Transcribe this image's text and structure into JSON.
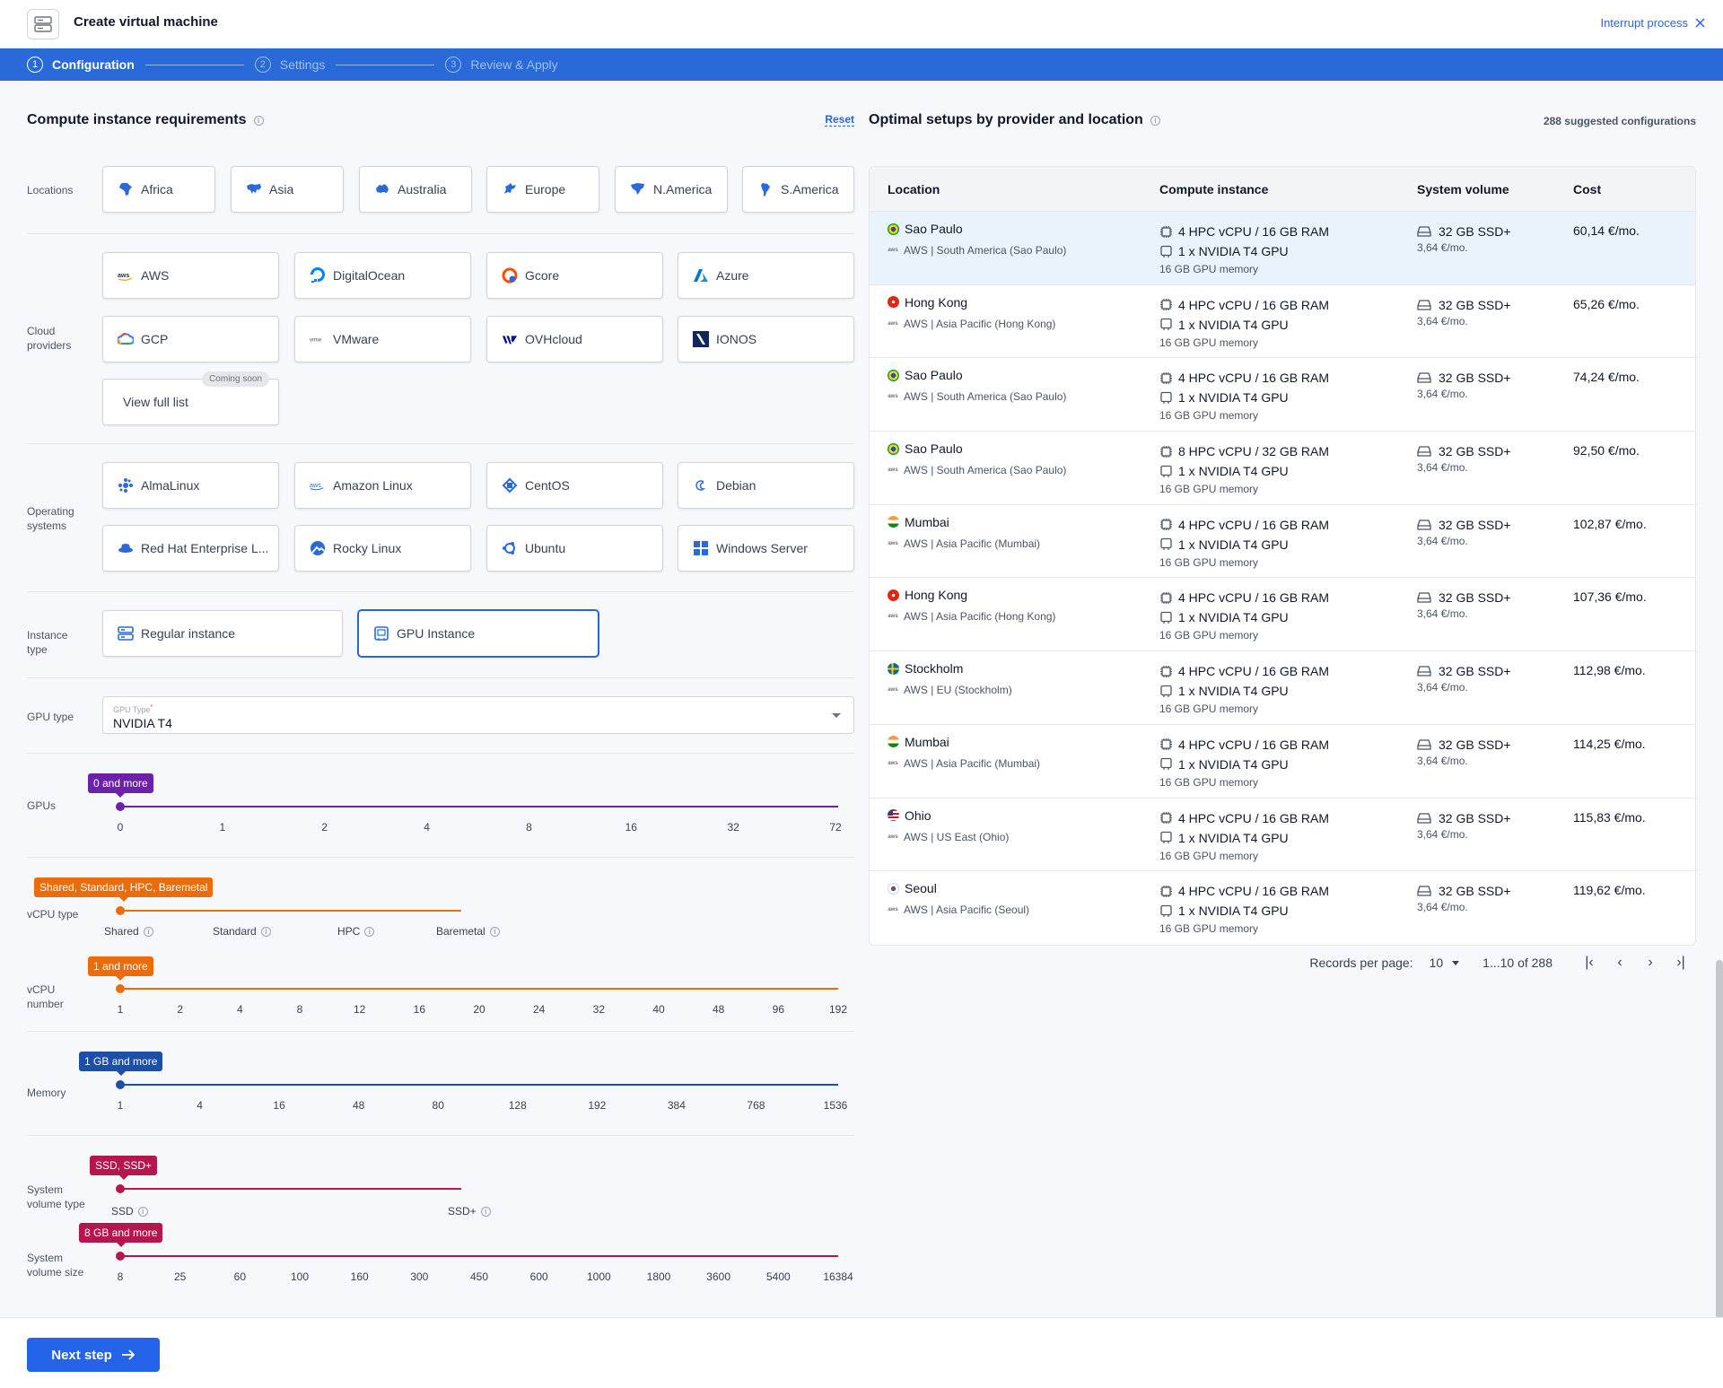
{
  "header": {
    "title": "Create virtual machine",
    "interrupt_label": "Interrupt process"
  },
  "stepper": {
    "steps": [
      {
        "num": "1",
        "label": "Configuration"
      },
      {
        "num": "2",
        "label": "Settings"
      },
      {
        "num": "3",
        "label": "Review & Apply"
      }
    ]
  },
  "left": {
    "title": "Compute instance requirements",
    "reset_label": "Reset",
    "locations": {
      "label": "Locations",
      "items": [
        "Africa",
        "Asia",
        "Australia",
        "Europe",
        "N.America",
        "S.America"
      ]
    },
    "cloud_providers": {
      "label": "Cloud providers",
      "items": [
        "AWS",
        "DigitalOcean",
        "Gcore",
        "Azure",
        "GCP",
        "VMware",
        "OVHcloud",
        "IONOS"
      ],
      "view_full_list": "View full list",
      "coming_soon": "Coming soon"
    },
    "operating_systems": {
      "label": "Operating systems",
      "items": [
        "AlmaLinux",
        "Amazon Linux",
        "CentOS",
        "Debian",
        "Red Hat Enterprise L...",
        "Rocky Linux",
        "Ubuntu",
        "Windows Server"
      ]
    },
    "instance_type": {
      "label": "Instance type",
      "items": [
        "Regular instance",
        "GPU Instance"
      ],
      "selected": "GPU Instance"
    },
    "gpu_type": {
      "label": "GPU type",
      "field_label": "GPU Type",
      "required_mark": "*",
      "value": "NVIDIA T4"
    },
    "gpus": {
      "label": "GPUs",
      "tag": "0 and more",
      "ticks": [
        "0",
        "1",
        "2",
        "4",
        "8",
        "16",
        "32",
        "72"
      ],
      "color": "#6b21a8"
    },
    "vcpu_type": {
      "label": "vCPU type",
      "tag": "Shared, Standard, HPC, Baremetal",
      "ticks": [
        "Shared",
        "Standard",
        "HPC",
        "Baremetal"
      ],
      "color": "#ea6c0a"
    },
    "vcpu_number": {
      "label": "vCPU number",
      "tag": "1 and more",
      "ticks": [
        "1",
        "2",
        "4",
        "8",
        "12",
        "16",
        "20",
        "24",
        "32",
        "40",
        "48",
        "96",
        "192"
      ],
      "color": "#ea6c0a"
    },
    "memory": {
      "label": "Memory",
      "tag": "1 GB and more",
      "ticks": [
        "1",
        "4",
        "16",
        "48",
        "80",
        "128",
        "192",
        "384",
        "768",
        "1536"
      ],
      "color": "#1e4fa8"
    },
    "volume_type": {
      "label": "System volume type",
      "tag": "SSD, SSD+",
      "ticks": [
        "SSD",
        "SSD+"
      ],
      "color": "#b5164e"
    },
    "volume_size": {
      "label": "System volume size",
      "tag": "8 GB and more",
      "ticks": [
        "8",
        "25",
        "60",
        "100",
        "160",
        "300",
        "450",
        "600",
        "1000",
        "1800",
        "3600",
        "5400",
        "16384"
      ],
      "color": "#b5164e"
    }
  },
  "right": {
    "title": "Optimal setups by provider and location",
    "suggested": "288 suggested configurations",
    "columns": [
      "Location",
      "Compute instance",
      "System volume",
      "Cost"
    ],
    "rows": [
      {
        "city": "Sao Paulo",
        "flag": "br",
        "provider": "AWS | South America (Sao Paulo)",
        "cpu": "4 HPC vCPU / 16 GB RAM",
        "gpu": "1 x NVIDIA T4 GPU",
        "gpu_mem": "16 GB GPU memory",
        "vol": "32 GB SSD+",
        "vol_cost": "3,64 €/mo.",
        "cost": "60,14 €/mo."
      },
      {
        "city": "Hong Kong",
        "flag": "hk",
        "provider": "AWS | Asia Pacific (Hong Kong)",
        "cpu": "4 HPC vCPU / 16 GB RAM",
        "gpu": "1 x NVIDIA T4 GPU",
        "gpu_mem": "16 GB GPU memory",
        "vol": "32 GB SSD+",
        "vol_cost": "3,64 €/mo.",
        "cost": "65,26 €/mo."
      },
      {
        "city": "Sao Paulo",
        "flag": "br",
        "provider": "AWS | South America (Sao Paulo)",
        "cpu": "4 HPC vCPU / 16 GB RAM",
        "gpu": "1 x NVIDIA T4 GPU",
        "gpu_mem": "16 GB GPU memory",
        "vol": "32 GB SSD+",
        "vol_cost": "3,64 €/mo.",
        "cost": "74,24 €/mo."
      },
      {
        "city": "Sao Paulo",
        "flag": "br",
        "provider": "AWS | South America (Sao Paulo)",
        "cpu": "8 HPC vCPU / 32 GB RAM",
        "gpu": "1 x NVIDIA T4 GPU",
        "gpu_mem": "16 GB GPU memory",
        "vol": "32 GB SSD+",
        "vol_cost": "3,64 €/mo.",
        "cost": "92,50 €/mo."
      },
      {
        "city": "Mumbai",
        "flag": "in",
        "provider": "AWS | Asia Pacific (Mumbai)",
        "cpu": "4 HPC vCPU / 16 GB RAM",
        "gpu": "1 x NVIDIA T4 GPU",
        "gpu_mem": "16 GB GPU memory",
        "vol": "32 GB SSD+",
        "vol_cost": "3,64 €/mo.",
        "cost": "102,87 €/mo."
      },
      {
        "city": "Hong Kong",
        "flag": "hk",
        "provider": "AWS | Asia Pacific (Hong Kong)",
        "cpu": "4 HPC vCPU / 16 GB RAM",
        "gpu": "1 x NVIDIA T4 GPU",
        "gpu_mem": "16 GB GPU memory",
        "vol": "32 GB SSD+",
        "vol_cost": "3,64 €/mo.",
        "cost": "107,36 €/mo."
      },
      {
        "city": "Stockholm",
        "flag": "se",
        "provider": "AWS | EU (Stockholm)",
        "cpu": "4 HPC vCPU / 16 GB RAM",
        "gpu": "1 x NVIDIA T4 GPU",
        "gpu_mem": "16 GB GPU memory",
        "vol": "32 GB SSD+",
        "vol_cost": "3,64 €/mo.",
        "cost": "112,98 €/mo."
      },
      {
        "city": "Mumbai",
        "flag": "in",
        "provider": "AWS | Asia Pacific (Mumbai)",
        "cpu": "4 HPC vCPU / 16 GB RAM",
        "gpu": "1 x NVIDIA T4 GPU",
        "gpu_mem": "16 GB GPU memory",
        "vol": "32 GB SSD+",
        "vol_cost": "3,64 €/mo.",
        "cost": "114,25 €/mo."
      },
      {
        "city": "Ohio",
        "flag": "us",
        "provider": "AWS | US East (Ohio)",
        "cpu": "4 HPC vCPU / 16 GB RAM",
        "gpu": "1 x NVIDIA T4 GPU",
        "gpu_mem": "16 GB GPU memory",
        "vol": "32 GB SSD+",
        "vol_cost": "3,64 €/mo.",
        "cost": "115,83 €/mo."
      },
      {
        "city": "Seoul",
        "flag": "kr",
        "provider": "AWS | Asia Pacific (Seoul)",
        "cpu": "4 HPC vCPU / 16 GB RAM",
        "gpu": "1 x NVIDIA T4 GPU",
        "gpu_mem": "16 GB GPU memory",
        "vol": "32 GB SSD+",
        "vol_cost": "3,64 €/mo.",
        "cost": "119,62 €/mo."
      }
    ],
    "pager": {
      "records_label": "Records per page:",
      "per_page": "10",
      "range": "1...10 of 288"
    }
  },
  "footer": {
    "next_label": "Next step"
  },
  "colors": {
    "accent": "#2563eb",
    "stepper_bg": "#2a6ad8",
    "highlight_row": "#e8f3fb"
  }
}
